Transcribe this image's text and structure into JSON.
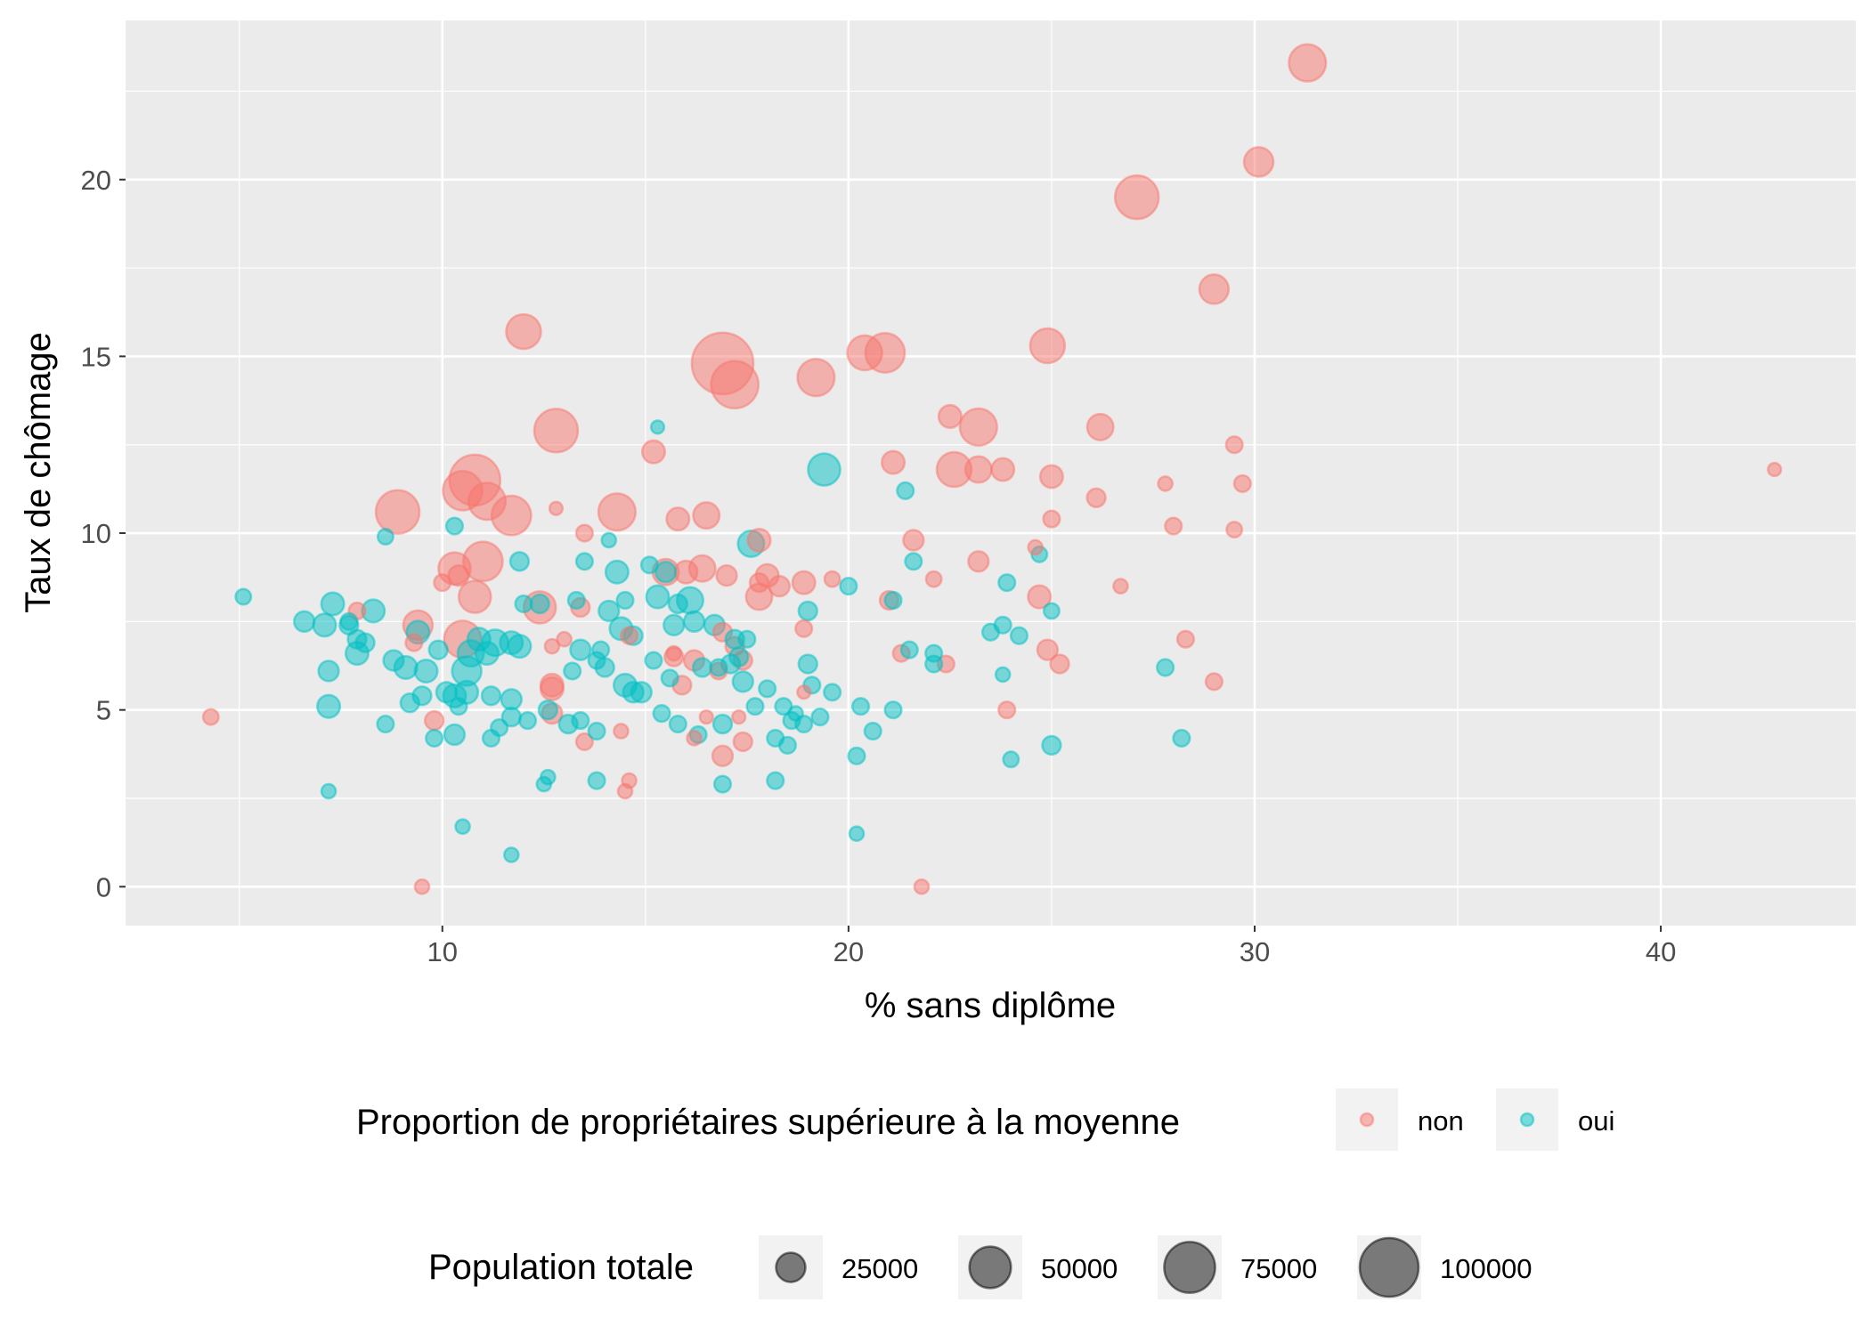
{
  "chart_data": {
    "type": "scatter",
    "xlabel": "% sans diplôme",
    "ylabel": "Taux de chômage",
    "xlim": [
      2.2,
      44.8
    ],
    "ylim": [
      -1.1,
      24.5
    ],
    "x_ticks": [
      10,
      20,
      30,
      40
    ],
    "y_ticks": [
      0,
      5,
      10,
      15,
      20
    ],
    "grid": true,
    "legend_position": "bottom",
    "colors": {
      "non": "#F8766D",
      "oui": "#00BFC4"
    },
    "color_legend": {
      "title": "Proportion de propriétaires supérieure à la moyenne",
      "entries": [
        "non",
        "oui"
      ]
    },
    "size_legend": {
      "title": "Population totale",
      "values": [
        25000,
        50000,
        75000,
        100000
      ],
      "labels": [
        "25000",
        "50000",
        "75000",
        "100000"
      ]
    },
    "series": [
      {
        "name": "non",
        "points": [
          [
            31.3,
            23.3,
            40000
          ],
          [
            30.1,
            20.5,
            25000
          ],
          [
            27.1,
            19.5,
            55000
          ],
          [
            29.0,
            16.9,
            25000
          ],
          [
            16.9,
            14.8,
            110000
          ],
          [
            17.2,
            14.2,
            65000
          ],
          [
            20.4,
            15.1,
            35000
          ],
          [
            20.9,
            15.1,
            45000
          ],
          [
            24.9,
            15.3,
            35000
          ],
          [
            19.2,
            14.4,
            40000
          ],
          [
            12.0,
            15.7,
            35000
          ],
          [
            12.8,
            12.9,
            55000
          ],
          [
            10.8,
            11.5,
            75000
          ],
          [
            10.5,
            11.2,
            45000
          ],
          [
            11.1,
            10.9,
            40000
          ],
          [
            8.9,
            10.6,
            55000
          ],
          [
            11.7,
            10.5,
            45000
          ],
          [
            14.3,
            10.6,
            40000
          ],
          [
            11.0,
            9.2,
            45000
          ],
          [
            10.3,
            9.0,
            30000
          ],
          [
            10.8,
            8.2,
            30000
          ],
          [
            9.4,
            7.4,
            25000
          ],
          [
            10.5,
            7.0,
            40000
          ],
          [
            12.4,
            7.9,
            30000
          ],
          [
            12.7,
            5.7,
            15000
          ],
          [
            15.2,
            12.3,
            15000
          ],
          [
            22.5,
            13.3,
            15000
          ],
          [
            23.2,
            13.0,
            40000
          ],
          [
            26.2,
            13.0,
            20000
          ],
          [
            22.6,
            11.8,
            35000
          ],
          [
            23.2,
            11.8,
            20000
          ],
          [
            23.8,
            11.8,
            15000
          ],
          [
            21.1,
            12.0,
            15000
          ],
          [
            25.0,
            11.6,
            15000
          ],
          [
            29.5,
            12.5,
            8000
          ],
          [
            29.7,
            11.4,
            8000
          ],
          [
            27.8,
            11.4,
            6000
          ],
          [
            42.8,
            11.8,
            5000
          ],
          [
            16.5,
            10.5,
            20000
          ],
          [
            15.8,
            10.4,
            15000
          ],
          [
            21.6,
            9.8,
            12000
          ],
          [
            17.8,
            9.8,
            15000
          ],
          [
            25.0,
            10.4,
            8000
          ],
          [
            26.1,
            11.0,
            10000
          ],
          [
            28.0,
            10.2,
            8000
          ],
          [
            29.5,
            10.1,
            7000
          ],
          [
            12.8,
            10.7,
            5000
          ],
          [
            13.5,
            10.0,
            8000
          ],
          [
            15.5,
            8.9,
            20000
          ],
          [
            16.0,
            8.9,
            15000
          ],
          [
            16.4,
            9.0,
            20000
          ],
          [
            17.0,
            8.8,
            12000
          ],
          [
            18.0,
            8.8,
            15000
          ],
          [
            17.8,
            8.2,
            20000
          ],
          [
            17.8,
            8.6,
            10000
          ],
          [
            18.3,
            8.5,
            12000
          ],
          [
            18.9,
            8.6,
            15000
          ],
          [
            19.6,
            8.7,
            7000
          ],
          [
            23.2,
            9.2,
            12000
          ],
          [
            24.6,
            9.6,
            6000
          ],
          [
            26.7,
            8.5,
            6000
          ],
          [
            24.7,
            8.2,
            15000
          ],
          [
            22.1,
            8.7,
            7000
          ],
          [
            21.0,
            8.1,
            10000
          ],
          [
            16.9,
            7.2,
            10000
          ],
          [
            18.9,
            7.3,
            8000
          ],
          [
            17.2,
            6.8,
            10000
          ],
          [
            16.2,
            6.4,
            12000
          ],
          [
            17.4,
            6.4,
            10000
          ],
          [
            21.3,
            6.6,
            8000
          ],
          [
            22.4,
            6.3,
            8000
          ],
          [
            24.9,
            6.7,
            12000
          ],
          [
            25.2,
            6.3,
            10000
          ],
          [
            28.3,
            7.0,
            8000
          ],
          [
            29.0,
            5.8,
            8000
          ],
          [
            10.0,
            8.6,
            8000
          ],
          [
            10.4,
            8.8,
            12000
          ],
          [
            13.4,
            7.9,
            10000
          ],
          [
            15.7,
            6.5,
            10000
          ],
          [
            16.8,
            6.1,
            8000
          ],
          [
            15.9,
            5.7,
            10000
          ],
          [
            17.4,
            4.1,
            10000
          ],
          [
            16.9,
            3.7,
            12000
          ],
          [
            16.2,
            4.2,
            6000
          ],
          [
            14.4,
            4.4,
            6000
          ],
          [
            13.5,
            4.1,
            8000
          ],
          [
            12.7,
            4.9,
            12000
          ],
          [
            12.7,
            5.6,
            15000
          ],
          [
            14.6,
            3.0,
            6000
          ],
          [
            14.5,
            2.7,
            6000
          ],
          [
            9.8,
            4.7,
            10000
          ],
          [
            9.5,
            0.0,
            6000
          ],
          [
            21.8,
            0.0,
            6000
          ],
          [
            4.3,
            4.8,
            7000
          ],
          [
            23.9,
            5.0,
            8000
          ],
          [
            16.5,
            4.8,
            5000
          ],
          [
            17.3,
            4.8,
            5000
          ],
          [
            18.9,
            5.5,
            5000
          ],
          [
            7.9,
            7.8,
            8000
          ],
          [
            9.3,
            6.9,
            8000
          ],
          [
            13.0,
            7.0,
            6000
          ],
          [
            12.7,
            6.8,
            6000
          ],
          [
            15.7,
            6.6,
            6000
          ],
          [
            14.6,
            7.1,
            8000
          ]
        ]
      },
      {
        "name": "oui",
        "points": [
          [
            19.4,
            11.8,
            30000
          ],
          [
            17.6,
            9.7,
            20000
          ],
          [
            15.3,
            13.0,
            5000
          ],
          [
            21.4,
            11.2,
            8000
          ],
          [
            10.3,
            10.2,
            8000
          ],
          [
            8.6,
            9.9,
            7000
          ],
          [
            5.1,
            8.2,
            7000
          ],
          [
            6.6,
            7.5,
            12000
          ],
          [
            7.1,
            7.4,
            15000
          ],
          [
            7.3,
            8.0,
            15000
          ],
          [
            7.7,
            7.4,
            10000
          ],
          [
            8.3,
            7.8,
            15000
          ],
          [
            7.9,
            7.0,
            10000
          ],
          [
            7.9,
            6.6,
            15000
          ],
          [
            8.1,
            6.9,
            10000
          ],
          [
            7.7,
            7.5,
            8000
          ],
          [
            7.2,
            6.1,
            12000
          ],
          [
            7.2,
            5.1,
            15000
          ],
          [
            7.2,
            2.7,
            6000
          ],
          [
            8.8,
            6.4,
            12000
          ],
          [
            9.1,
            6.2,
            15000
          ],
          [
            9.4,
            7.2,
            15000
          ],
          [
            9.6,
            6.1,
            15000
          ],
          [
            9.9,
            6.7,
            10000
          ],
          [
            9.5,
            5.4,
            10000
          ],
          [
            9.2,
            5.2,
            10000
          ],
          [
            8.6,
            4.6,
            8000
          ],
          [
            9.8,
            4.2,
            8000
          ],
          [
            10.1,
            5.5,
            12000
          ],
          [
            10.3,
            5.4,
            15000
          ],
          [
            10.4,
            5.1,
            8000
          ],
          [
            10.3,
            4.3,
            12000
          ],
          [
            10.6,
            5.5,
            15000
          ],
          [
            10.6,
            6.1,
            25000
          ],
          [
            10.7,
            6.6,
            20000
          ],
          [
            10.9,
            7.0,
            15000
          ],
          [
            11.1,
            6.6,
            15000
          ],
          [
            11.3,
            6.9,
            20000
          ],
          [
            11.7,
            6.9,
            15000
          ],
          [
            11.9,
            6.8,
            15000
          ],
          [
            11.9,
            9.2,
            10000
          ],
          [
            11.2,
            5.4,
            10000
          ],
          [
            11.7,
            5.3,
            12000
          ],
          [
            11.7,
            4.8,
            10000
          ],
          [
            11.4,
            4.5,
            8000
          ],
          [
            11.2,
            4.2,
            8000
          ],
          [
            12.1,
            4.7,
            8000
          ],
          [
            12.6,
            5.0,
            10000
          ],
          [
            12.6,
            3.1,
            6000
          ],
          [
            12.5,
            2.9,
            6000
          ],
          [
            10.5,
            1.7,
            6000
          ],
          [
            11.7,
            0.9,
            6000
          ],
          [
            12.4,
            8.0,
            10000
          ],
          [
            12.0,
            8.0,
            8000
          ],
          [
            13.3,
            8.1,
            8000
          ],
          [
            13.5,
            9.2,
            8000
          ],
          [
            14.1,
            9.8,
            6000
          ],
          [
            14.3,
            8.9,
            15000
          ],
          [
            14.5,
            8.1,
            8000
          ],
          [
            15.1,
            9.1,
            8000
          ],
          [
            15.3,
            8.2,
            15000
          ],
          [
            15.5,
            8.9,
            12000
          ],
          [
            15.8,
            8.0,
            10000
          ],
          [
            16.1,
            8.1,
            20000
          ],
          [
            16.2,
            7.5,
            12000
          ],
          [
            16.7,
            7.4,
            12000
          ],
          [
            17.2,
            7.0,
            10000
          ],
          [
            17.5,
            7.0,
            8000
          ],
          [
            15.7,
            7.4,
            12000
          ],
          [
            16.4,
            6.2,
            10000
          ],
          [
            17.1,
            6.3,
            10000
          ],
          [
            17.3,
            6.5,
            10000
          ],
          [
            16.8,
            6.2,
            8000
          ],
          [
            17.4,
            5.8,
            12000
          ],
          [
            18.0,
            5.6,
            8000
          ],
          [
            18.2,
            4.2,
            8000
          ],
          [
            18.5,
            4.0,
            8000
          ],
          [
            18.6,
            4.7,
            8000
          ],
          [
            18.9,
            4.6,
            8000
          ],
          [
            19.3,
            4.8,
            8000
          ],
          [
            18.7,
            4.9,
            6000
          ],
          [
            18.4,
            5.1,
            8000
          ],
          [
            17.7,
            5.1,
            8000
          ],
          [
            16.9,
            4.6,
            10000
          ],
          [
            16.3,
            4.3,
            8000
          ],
          [
            15.4,
            4.9,
            8000
          ],
          [
            15.8,
            4.6,
            8000
          ],
          [
            14.7,
            5.5,
            12000
          ],
          [
            14.9,
            5.5,
            12000
          ],
          [
            14.5,
            5.7,
            15000
          ],
          [
            14.0,
            6.2,
            10000
          ],
          [
            13.4,
            6.7,
            12000
          ],
          [
            13.8,
            6.4,
            8000
          ],
          [
            13.2,
            6.1,
            8000
          ],
          [
            13.9,
            6.7,
            8000
          ],
          [
            14.1,
            7.8,
            12000
          ],
          [
            14.4,
            7.3,
            15000
          ],
          [
            14.7,
            7.1,
            10000
          ],
          [
            13.1,
            4.6,
            10000
          ],
          [
            13.4,
            4.7,
            8000
          ],
          [
            13.8,
            4.4,
            8000
          ],
          [
            13.8,
            3.0,
            8000
          ],
          [
            15.2,
            6.4,
            8000
          ],
          [
            15.6,
            5.9,
            8000
          ],
          [
            19.0,
            7.8,
            10000
          ],
          [
            19.0,
            6.3,
            10000
          ],
          [
            19.1,
            5.7,
            8000
          ],
          [
            19.6,
            5.5,
            8000
          ],
          [
            20.0,
            8.5,
            8000
          ],
          [
            20.3,
            5.1,
            8000
          ],
          [
            20.6,
            4.4,
            8000
          ],
          [
            20.2,
            3.7,
            8000
          ],
          [
            20.2,
            1.5,
            6000
          ],
          [
            21.1,
            5.0,
            8000
          ],
          [
            21.6,
            9.2,
            8000
          ],
          [
            21.1,
            8.1,
            8000
          ],
          [
            21.5,
            6.7,
            8000
          ],
          [
            22.1,
            6.6,
            8000
          ],
          [
            22.1,
            6.3,
            8000
          ],
          [
            23.5,
            7.2,
            8000
          ],
          [
            23.8,
            7.4,
            8000
          ],
          [
            24.2,
            7.1,
            8000
          ],
          [
            23.9,
            8.6,
            8000
          ],
          [
            24.7,
            9.4,
            7000
          ],
          [
            25.0,
            7.8,
            7000
          ],
          [
            23.8,
            6.0,
            6000
          ],
          [
            24.0,
            3.6,
            7000
          ],
          [
            25.0,
            4.0,
            10000
          ],
          [
            27.8,
            6.2,
            8000
          ],
          [
            28.2,
            4.2,
            8000
          ],
          [
            16.9,
            2.9,
            8000
          ],
          [
            18.2,
            3.0,
            8000
          ]
        ]
      }
    ]
  }
}
